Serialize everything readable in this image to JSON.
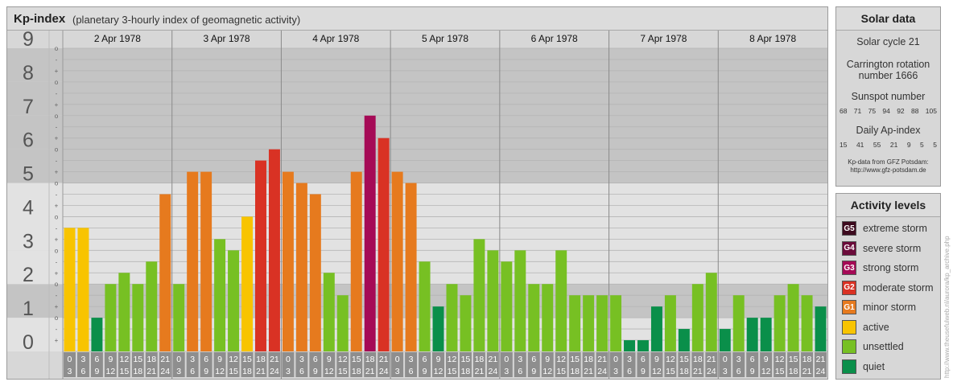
{
  "header": {
    "title": "Kp-index",
    "subtitle": "(planetary 3-hourly index of geomagnetic activity)"
  },
  "chart_data": {
    "type": "bar",
    "title": "Kp-index",
    "subtitle": "(planetary 3-hourly index of geomagnetic activity)",
    "ylim": [
      0,
      9
    ],
    "yticks": [
      "0",
      "1",
      "2",
      "3",
      "4",
      "5",
      "6",
      "7",
      "8",
      "9"
    ],
    "minor_tick_labels": [
      "+",
      "-",
      "o"
    ],
    "days": [
      "2 Apr 1978",
      "3 Apr 1978",
      "4 Apr 1978",
      "5 Apr 1978",
      "6 Apr 1978",
      "7 Apr 1978",
      "8 Apr 1978"
    ],
    "interval_labels": [
      [
        "0",
        "3"
      ],
      [
        "3",
        "6"
      ],
      [
        "6",
        "9"
      ],
      [
        "9",
        "12"
      ],
      [
        "12",
        "15"
      ],
      [
        "15",
        "18"
      ],
      [
        "18",
        "21"
      ],
      [
        "21",
        "24"
      ]
    ],
    "values": [
      [
        3.667,
        3.667,
        1.0,
        2.0,
        2.333,
        2.0,
        2.667,
        4.667
      ],
      [
        2.0,
        5.333,
        5.333,
        3.333,
        3.0,
        4.0,
        5.667,
        6.0
      ],
      [
        5.333,
        5.0,
        4.667,
        2.333,
        1.667,
        5.333,
        7.0,
        6.333
      ],
      [
        5.333,
        5.0,
        2.667,
        1.333,
        2.0,
        1.667,
        3.333,
        3.0
      ],
      [
        2.667,
        3.0,
        2.0,
        2.0,
        3.0,
        1.667,
        1.667,
        1.667
      ],
      [
        1.667,
        0.333,
        0.333,
        1.333,
        1.667,
        0.667,
        2.0,
        2.333
      ],
      [
        0.667,
        1.667,
        1.0,
        1.0,
        1.667,
        2.0,
        1.667,
        1.333
      ]
    ],
    "color_scale": [
      {
        "min": 0,
        "max": 2,
        "color": "#0a8f4a",
        "label": "quiet"
      },
      {
        "min": 2,
        "max": 4,
        "color": "#77c023",
        "label": "unsettled"
      },
      {
        "min": 4,
        "max": 5,
        "color": "#f8c400",
        "label": "active"
      },
      {
        "min": 5,
        "max": 6,
        "color": "#e67a1e",
        "label": "minor storm"
      },
      {
        "min": 6,
        "max": 7,
        "color": "#d93224",
        "label": "moderate storm"
      },
      {
        "min": 7,
        "max": 8,
        "color": "#a50a56",
        "label": "strong storm"
      },
      {
        "min": 8,
        "max": 9,
        "color": "#6b0b3a",
        "label": "severe storm"
      },
      {
        "min": 9,
        "max": 10,
        "color": "#3d0a1e",
        "label": "extreme storm"
      }
    ],
    "bar_colors": [
      [
        "#f8c400",
        "#f8c400",
        "#0a8f4a",
        "#77c023",
        "#77c023",
        "#77c023",
        "#77c023",
        "#e67a1e"
      ],
      [
        "#77c023",
        "#e67a1e",
        "#e67a1e",
        "#77c023",
        "#77c023",
        "#f8c400",
        "#d93224",
        "#d93224"
      ],
      [
        "#e67a1e",
        "#e67a1e",
        "#e67a1e",
        "#77c023",
        "#77c023",
        "#e67a1e",
        "#a50a56",
        "#d93224"
      ],
      [
        "#e67a1e",
        "#e67a1e",
        "#77c023",
        "#0a8f4a",
        "#77c023",
        "#77c023",
        "#77c023",
        "#77c023"
      ],
      [
        "#77c023",
        "#77c023",
        "#77c023",
        "#77c023",
        "#77c023",
        "#77c023",
        "#77c023",
        "#77c023"
      ],
      [
        "#77c023",
        "#0a8f4a",
        "#0a8f4a",
        "#0a8f4a",
        "#77c023",
        "#0a8f4a",
        "#77c023",
        "#77c023"
      ],
      [
        "#0a8f4a",
        "#77c023",
        "#0a8f4a",
        "#0a8f4a",
        "#77c023",
        "#77c023",
        "#77c023",
        "#0a8f4a"
      ]
    ],
    "band_colors": {
      "dark": "#c4c4c4",
      "light": "#e2e2e2"
    }
  },
  "solar": {
    "title": "Solar data",
    "cycle": "Solar cycle 21",
    "carrington_line1": "Carrington rotation",
    "carrington_line2": "number 1666",
    "sunspot_label": "Sunspot number",
    "sunspot_values": [
      "68",
      "71",
      "75",
      "94",
      "92",
      "88",
      "105"
    ],
    "ap_label": "Daily Ap-index",
    "ap_values": [
      "15",
      "41",
      "55",
      "21",
      "9",
      "5",
      "5"
    ],
    "credit_line1": "Kp-data from GFZ Potsdam:",
    "credit_line2": "http://www.gfz-potsdam.de"
  },
  "activity": {
    "title": "Activity levels",
    "levels": [
      {
        "badge": "G5",
        "label": "extreme storm",
        "color": "#3d0a1e"
      },
      {
        "badge": "G4",
        "label": "severe storm",
        "color": "#6b0b3a"
      },
      {
        "badge": "G3",
        "label": "strong storm",
        "color": "#a50a56"
      },
      {
        "badge": "G2",
        "label": "moderate storm",
        "color": "#d93224"
      },
      {
        "badge": "G1",
        "label": "minor storm",
        "color": "#e67a1e"
      },
      {
        "badge": "",
        "label": "active",
        "color": "#f8c400"
      },
      {
        "badge": "",
        "label": "unsettled",
        "color": "#77c023"
      },
      {
        "badge": "",
        "label": "quiet",
        "color": "#0a8f4a"
      }
    ]
  },
  "watermark": "http://www.theusefulweb.nl/aurora/kp_archive.php"
}
